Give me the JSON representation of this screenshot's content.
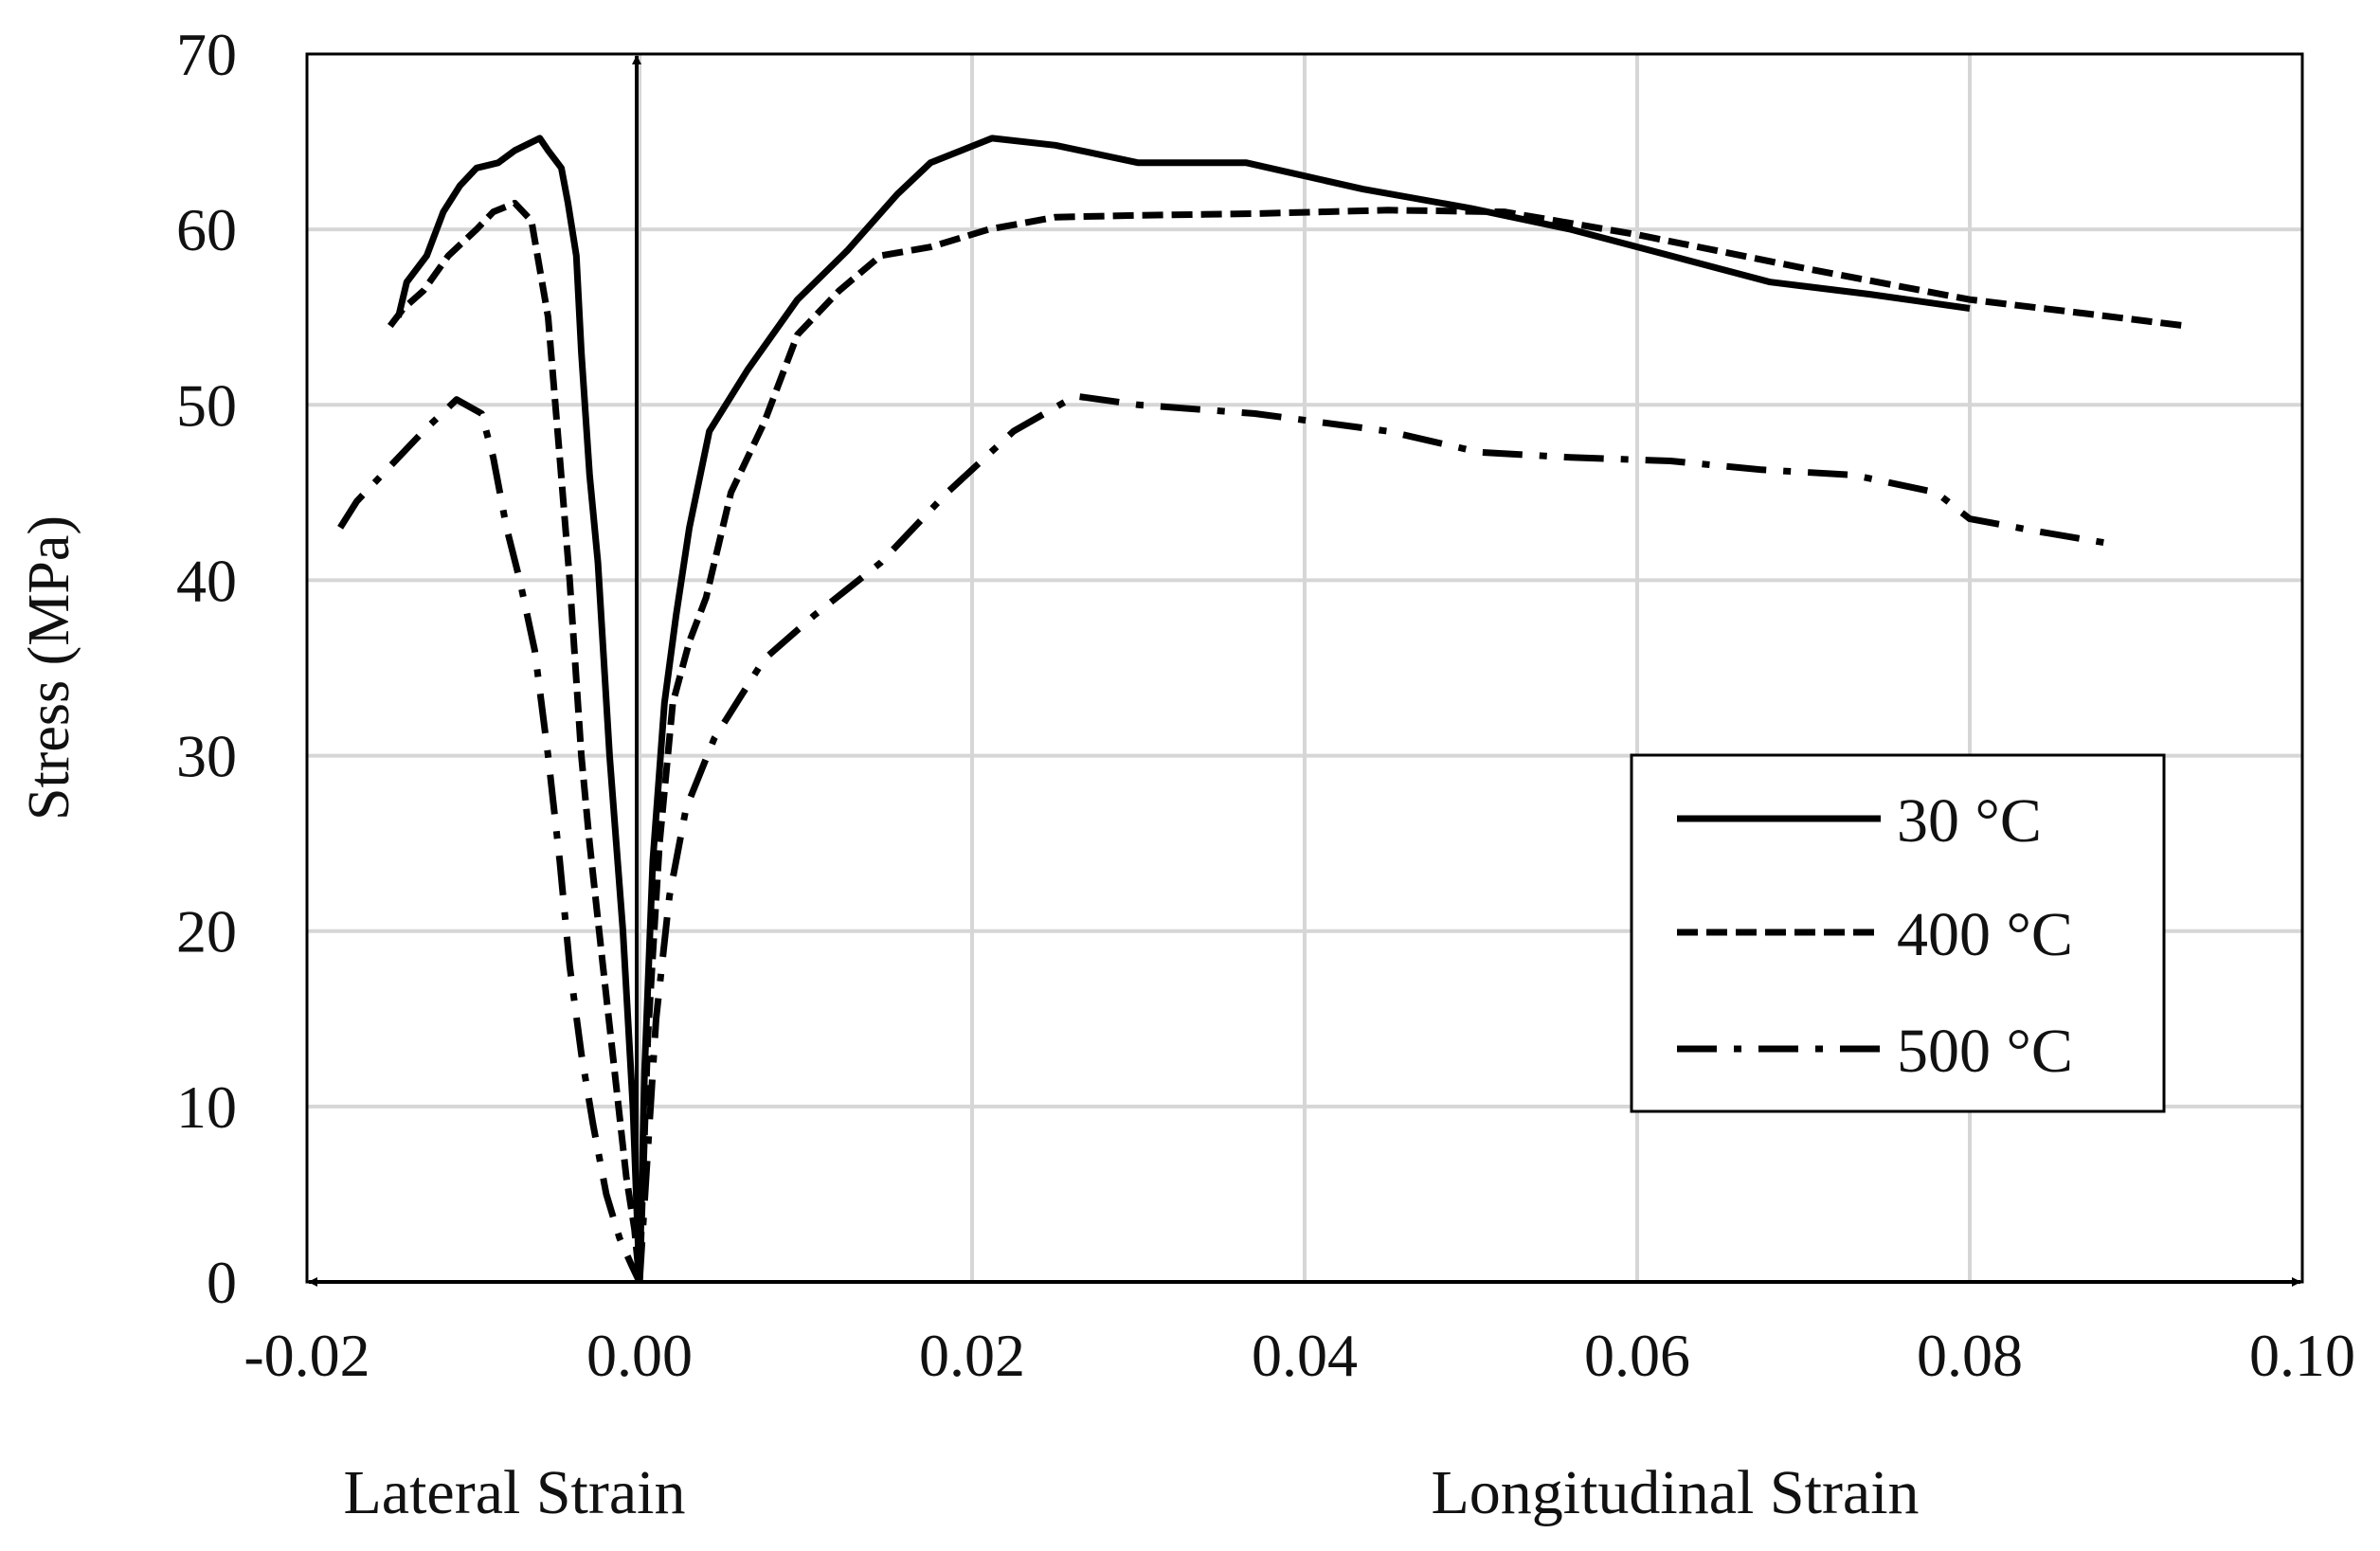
{
  "chart_data": {
    "type": "line",
    "title": "",
    "xlabel_left": "Lateral Strain",
    "xlabel_right": "Longitudinal Strain",
    "ylabel": "Stress (MPa)",
    "xlim": [
      -0.02,
      0.1
    ],
    "ylim": [
      0,
      70
    ],
    "xticks": [
      -0.02,
      0.0,
      0.02,
      0.04,
      0.06,
      0.08,
      0.1
    ],
    "xtick_labels": [
      "-0.02",
      "0.00",
      "0.02",
      "0.04",
      "0.06",
      "0.08",
      "0.10"
    ],
    "yticks": [
      0,
      10,
      20,
      30,
      40,
      50,
      60,
      70
    ],
    "ytick_labels": [
      "0",
      "10",
      "20",
      "30",
      "40",
      "50",
      "60",
      "70"
    ],
    "grid": true,
    "legend_position": "right",
    "series": [
      {
        "name": "30 °C",
        "style": "solid",
        "lateral": {
          "x": [
            -0.0145,
            -0.014,
            -0.0128,
            -0.0118,
            -0.0108,
            -0.0098,
            -0.0085,
            -0.0075,
            -0.006,
            -0.0055,
            -0.0047,
            -0.0043,
            -0.0038,
            -0.0035,
            -0.003,
            -0.0025,
            -0.0018,
            -0.001,
            -0.0004,
            0.0
          ],
          "y": [
            55,
            57,
            58.5,
            61,
            62.5,
            63.5,
            63.8,
            64.5,
            65.2,
            64.5,
            63.5,
            61.5,
            58.5,
            53,
            46,
            41,
            30,
            20,
            10,
            0
          ]
        },
        "longitudinal": {
          "x": [
            0.0,
            0.0003,
            0.0008,
            0.0015,
            0.0022,
            0.003,
            0.0042,
            0.0065,
            0.0095,
            0.0125,
            0.0155,
            0.0175,
            0.0212,
            0.025,
            0.03,
            0.0365,
            0.0435,
            0.05,
            0.056,
            0.062,
            0.068,
            0.074,
            0.08
          ],
          "y": [
            0,
            12,
            24,
            33,
            38,
            43,
            48.5,
            52,
            56,
            58.8,
            62,
            63.8,
            65.2,
            64.8,
            63.8,
            63.8,
            62.3,
            61.2,
            60,
            58.5,
            57,
            56.3,
            55.5
          ]
        }
      },
      {
        "name": "400 °C",
        "style": "dashed",
        "lateral": {
          "x": [
            -0.015,
            -0.0142,
            -0.013,
            -0.0115,
            -0.0098,
            -0.0088,
            -0.0075,
            -0.0065,
            -0.0055,
            -0.0048,
            -0.0042,
            -0.0035,
            -0.003,
            -0.0022,
            -0.0015,
            -0.0008,
            -0.0003,
            0.0
          ],
          "y": [
            54.5,
            55.5,
            56.5,
            58.5,
            60,
            61,
            61.5,
            60.5,
            55,
            47,
            40,
            30,
            25,
            18,
            12,
            6,
            3,
            0
          ]
        },
        "longitudinal": {
          "x": [
            0.0,
            0.0005,
            0.0012,
            0.002,
            0.003,
            0.004,
            0.0055,
            0.0075,
            0.0095,
            0.012,
            0.0145,
            0.0175,
            0.021,
            0.025,
            0.03,
            0.037,
            0.045,
            0.052,
            0.06,
            0.07,
            0.08,
            0.087,
            0.093
          ],
          "y": [
            0,
            14,
            25,
            33,
            36.5,
            39,
            45,
            49,
            54,
            56.5,
            58.5,
            59,
            60,
            60.7,
            60.8,
            60.9,
            61.1,
            61,
            59.7,
            57.8,
            56,
            55.2,
            54.5
          ]
        }
      },
      {
        "name": "500 °C",
        "style": "dashdot",
        "lateral": {
          "x": [
            -0.018,
            -0.017,
            -0.015,
            -0.013,
            -0.011,
            -0.0095,
            -0.0088,
            -0.008,
            -0.0072,
            -0.0063,
            -0.0055,
            -0.0048,
            -0.0042,
            -0.0035,
            -0.0028,
            -0.002,
            -0.0012,
            -0.0005,
            0.0
          ],
          "y": [
            43,
            44.5,
            46.5,
            48.5,
            50.3,
            49.5,
            47,
            43,
            40,
            36,
            30,
            24,
            18,
            13,
            9,
            5,
            2.5,
            1,
            0
          ]
        },
        "longitudinal": {
          "x": [
            0.0,
            0.0004,
            0.001,
            0.0018,
            0.0028,
            0.0045,
            0.0075,
            0.0105,
            0.0145,
            0.0185,
            0.0225,
            0.0262,
            0.03,
            0.037,
            0.045,
            0.0505,
            0.056,
            0.062,
            0.0675,
            0.073,
            0.078,
            0.08,
            0.084,
            0.089
          ],
          "y": [
            0,
            6,
            15,
            22,
            27,
            31,
            35.5,
            38,
            41,
            45,
            48.5,
            50.5,
            50,
            49.5,
            48.5,
            47.3,
            47,
            46.8,
            46.3,
            46,
            45,
            43.5,
            42.8,
            42
          ]
        }
      }
    ]
  }
}
